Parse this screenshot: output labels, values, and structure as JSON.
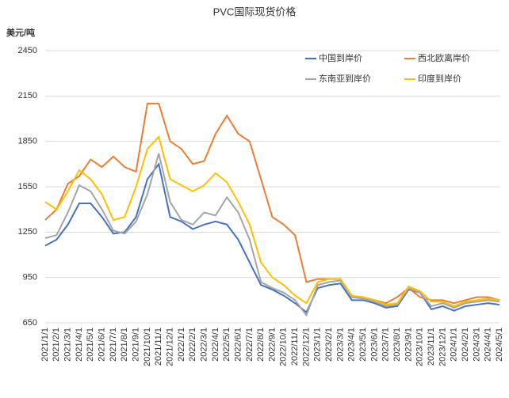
{
  "chart_data": {
    "type": "line",
    "title": "PVC国际现货价格",
    "y_label": "美元/吨",
    "categories": [
      "2021/1/1",
      "2021/2/1",
      "2021/3/1",
      "2021/4/1",
      "2021/5/1",
      "2021/6/1",
      "2021/7/1",
      "2021/8/1",
      "2021/9/1",
      "2021/10/1",
      "2021/11/1",
      "2021/12/1",
      "2022/1/1",
      "2022/2/1",
      "2022/3/1",
      "2022/4/1",
      "2022/5/1",
      "2022/6/1",
      "2022/7/1",
      "2022/8/1",
      "2022/9/1",
      "2022/10/1",
      "2022/11/1",
      "2022/12/1",
      "2023/1/1",
      "2023/2/1",
      "2023/3/1",
      "2023/4/1",
      "2023/5/1",
      "2023/6/1",
      "2023/7/1",
      "2023/8/1",
      "2023/9/1",
      "2023/10/1",
      "2023/11/1",
      "2023/12/1",
      "2024/1/1",
      "2024/2/1",
      "2024/3/1",
      "2024/4/1",
      "2024/5/1"
    ],
    "series": [
      {
        "name": "中国到岸价",
        "color": "#4472c4",
        "values": [
          1160,
          1200,
          1300,
          1440,
          1440,
          1350,
          1240,
          1250,
          1350,
          1600,
          1700,
          1350,
          1320,
          1270,
          1300,
          1320,
          1300,
          1200,
          1050,
          900,
          870,
          830,
          780,
          720,
          880,
          900,
          910,
          800,
          800,
          780,
          750,
          760,
          870,
          850,
          740,
          760,
          730,
          760,
          770,
          780,
          770
        ]
      },
      {
        "name": "西北欧离岸价",
        "color": "#ed7d31",
        "values": [
          1330,
          1400,
          1570,
          1620,
          1730,
          1680,
          1750,
          1680,
          1650,
          2100,
          2100,
          1850,
          1800,
          1700,
          1720,
          1900,
          2020,
          1900,
          1850,
          1600,
          1350,
          1300,
          1230,
          920,
          940,
          940,
          940,
          820,
          820,
          800,
          780,
          820,
          880,
          820,
          800,
          800,
          780,
          800,
          820,
          820,
          800
        ]
      },
      {
        "name": "东南亚到岸价",
        "color": "#a5a5a5",
        "values": [
          1210,
          1230,
          1380,
          1560,
          1520,
          1400,
          1260,
          1240,
          1320,
          1500,
          1770,
          1450,
          1330,
          1300,
          1380,
          1360,
          1480,
          1380,
          1200,
          920,
          880,
          850,
          800,
          700,
          900,
          920,
          930,
          820,
          810,
          790,
          760,
          770,
          880,
          850,
          760,
          780,
          750,
          780,
          790,
          800,
          790
        ]
      },
      {
        "name": "印度到岸价",
        "color": "#ffc000",
        "values": [
          1450,
          1400,
          1520,
          1660,
          1600,
          1500,
          1330,
          1350,
          1550,
          1800,
          1880,
          1600,
          1560,
          1520,
          1560,
          1640,
          1580,
          1450,
          1300,
          1050,
          950,
          900,
          830,
          780,
          920,
          940,
          940,
          830,
          820,
          800,
          770,
          780,
          890,
          860,
          790,
          790,
          760,
          790,
          800,
          810,
          800
        ]
      }
    ],
    "ylim": [
      650,
      2450
    ],
    "yticks": [
      650,
      950,
      1250,
      1550,
      1850,
      2150,
      2450
    ],
    "grid": true,
    "legend": "upper right"
  }
}
